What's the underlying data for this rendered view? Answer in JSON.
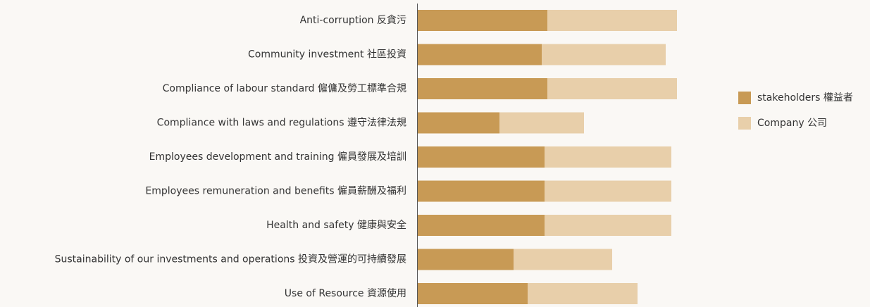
{
  "chart_data": {
    "type": "bar",
    "orientation": "horizontal",
    "stacked": true,
    "legend": "right",
    "categories": [
      "Anti-corruption 反貪污",
      "Community investment 社區投資",
      "Compliance of labour standard 僱傭及勞工標準合規",
      "Compliance with laws and regulations 遵守法律法規",
      "Employees development and training 僱員發展及培訓",
      "Employees remuneration and benefits 僱員薪酬及福利",
      "Health and safety 健康與安全",
      "Sustainability of our investments and operations 投資及營運的可持續發展",
      "Use of Resource 資源使用"
    ],
    "series": [
      {
        "name": "stakeholders 權益者",
        "color": "#c89a55",
        "values": [
          4.6,
          4.4,
          4.6,
          2.9,
          4.5,
          4.5,
          4.5,
          3.4,
          3.9
        ]
      },
      {
        "name": "Company 公司",
        "color": "#e8cfaa",
        "values": [
          4.6,
          4.4,
          4.6,
          3.0,
          4.5,
          4.5,
          4.5,
          3.5,
          3.9
        ]
      }
    ]
  }
}
